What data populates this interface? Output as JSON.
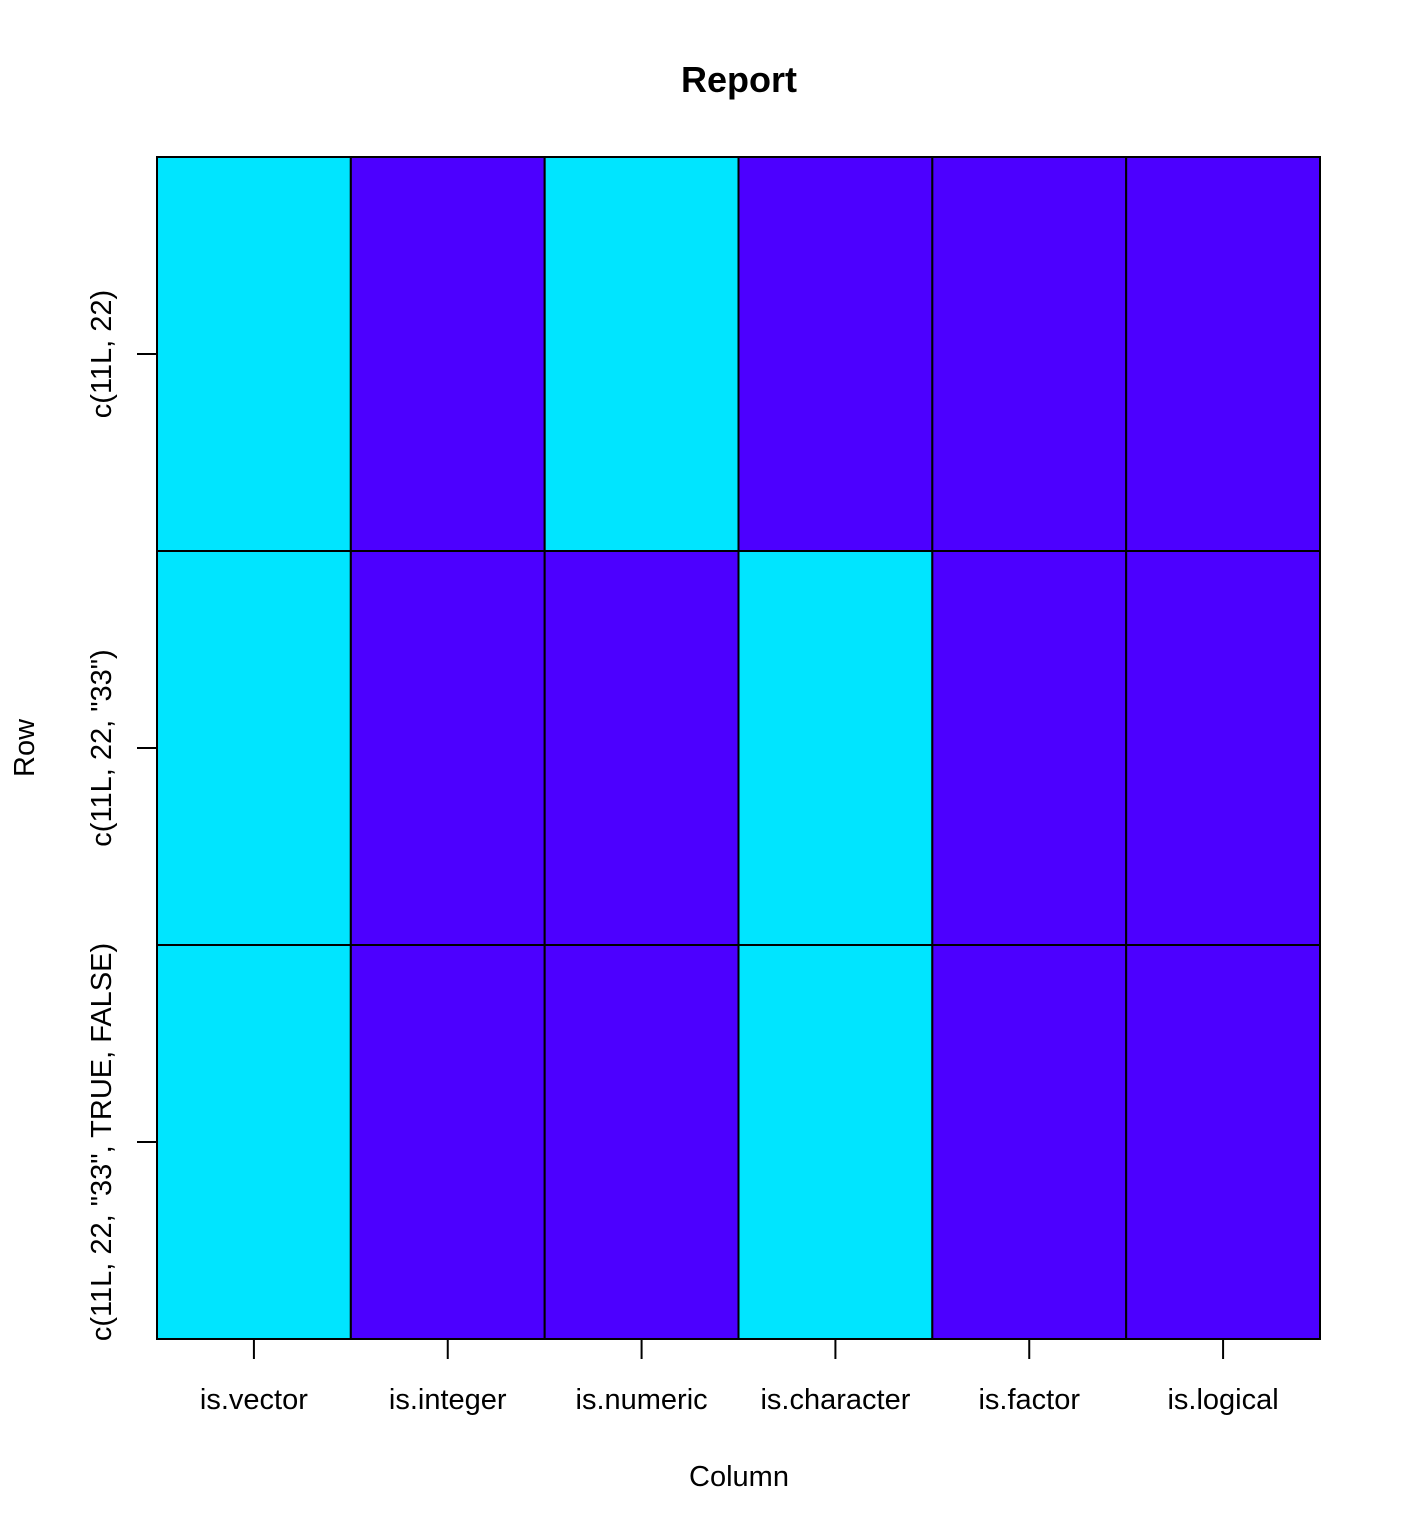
{
  "chart_data": {
    "type": "heatmap",
    "title": "Report",
    "xlabel": "Column",
    "ylabel": "Row",
    "columns": [
      "is.vector",
      "is.integer",
      "is.numeric",
      "is.character",
      "is.factor",
      "is.logical"
    ],
    "rows": [
      "c(11L, 22)",
      "c(11L, 22, \"33\")",
      "c(11L, 22, \"33\", TRUE, FALSE)"
    ],
    "values": [
      [
        1,
        0,
        1,
        0,
        0,
        0
      ],
      [
        1,
        0,
        0,
        1,
        0,
        0
      ],
      [
        1,
        0,
        0,
        1,
        0,
        0
      ]
    ],
    "colors": {
      "true": "#00E5FF",
      "false": "#4C00FF"
    },
    "grid": true,
    "legend": "none"
  }
}
